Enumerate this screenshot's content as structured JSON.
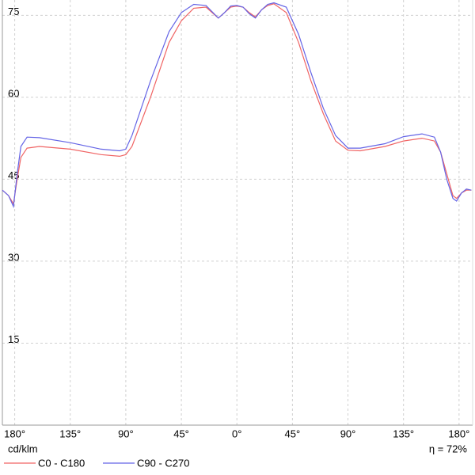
{
  "chart_data": {
    "type": "line",
    "x_label": "cd/klm",
    "annotation": "η = 72%",
    "x": [
      -190,
      -185,
      -181,
      -178,
      -175,
      -170,
      -160,
      -135,
      -110,
      -95,
      -90,
      -85,
      -70,
      -55,
      -45,
      -35,
      -25,
      -15,
      -10,
      -5,
      0,
      5,
      10,
      15,
      20,
      25,
      30,
      40,
      50,
      60,
      70,
      80,
      90,
      100,
      120,
      135,
      150,
      160,
      165,
      170,
      175,
      178,
      182,
      186,
      190
    ],
    "series": [
      {
        "name": "C0 - C180",
        "color": "#f06464",
        "values": [
          43,
          42,
          40.5,
          45,
          49,
          50.7,
          51,
          50.5,
          49.5,
          49.2,
          49.5,
          51,
          60,
          70,
          74,
          76.3,
          76.5,
          74.5,
          75.5,
          76.5,
          76.7,
          76.5,
          75.5,
          74.7,
          76,
          76.8,
          77.1,
          75.5,
          70,
          63,
          57,
          52,
          50.3,
          50.2,
          51,
          52,
          52.5,
          52,
          50,
          46,
          42,
          41.5,
          42.5,
          43,
          43
        ]
      },
      {
        "name": "C90 - C270",
        "color": "#6464e6",
        "values": [
          43,
          42,
          40,
          46,
          51,
          52.7,
          52.6,
          51.7,
          50.5,
          50.2,
          50.5,
          53,
          63,
          72,
          75.5,
          77,
          76.8,
          74.5,
          75.5,
          76.7,
          76.8,
          76.5,
          75.3,
          74.5,
          76,
          77,
          77.3,
          76.5,
          71.5,
          64.5,
          58,
          53,
          50.7,
          50.7,
          51.5,
          52.8,
          53.3,
          52.7,
          50,
          45,
          41.5,
          41,
          42.5,
          43.2,
          43
        ]
      }
    ],
    "xlim": [
      -190,
      191
    ],
    "ylim": [
      0,
      77.8
    ],
    "xticks": [
      {
        "value": -180,
        "label": "180°"
      },
      {
        "value": -135,
        "label": "135°"
      },
      {
        "value": -90,
        "label": "90°"
      },
      {
        "value": -45,
        "label": "45°"
      },
      {
        "value": 0,
        "label": "0°"
      },
      {
        "value": 45,
        "label": "45°"
      },
      {
        "value": 90,
        "label": "90°"
      },
      {
        "value": 135,
        "label": "135°"
      },
      {
        "value": 180,
        "label": "180°"
      }
    ],
    "yticks": [
      15,
      30,
      45,
      60,
      75
    ],
    "grid": true
  }
}
